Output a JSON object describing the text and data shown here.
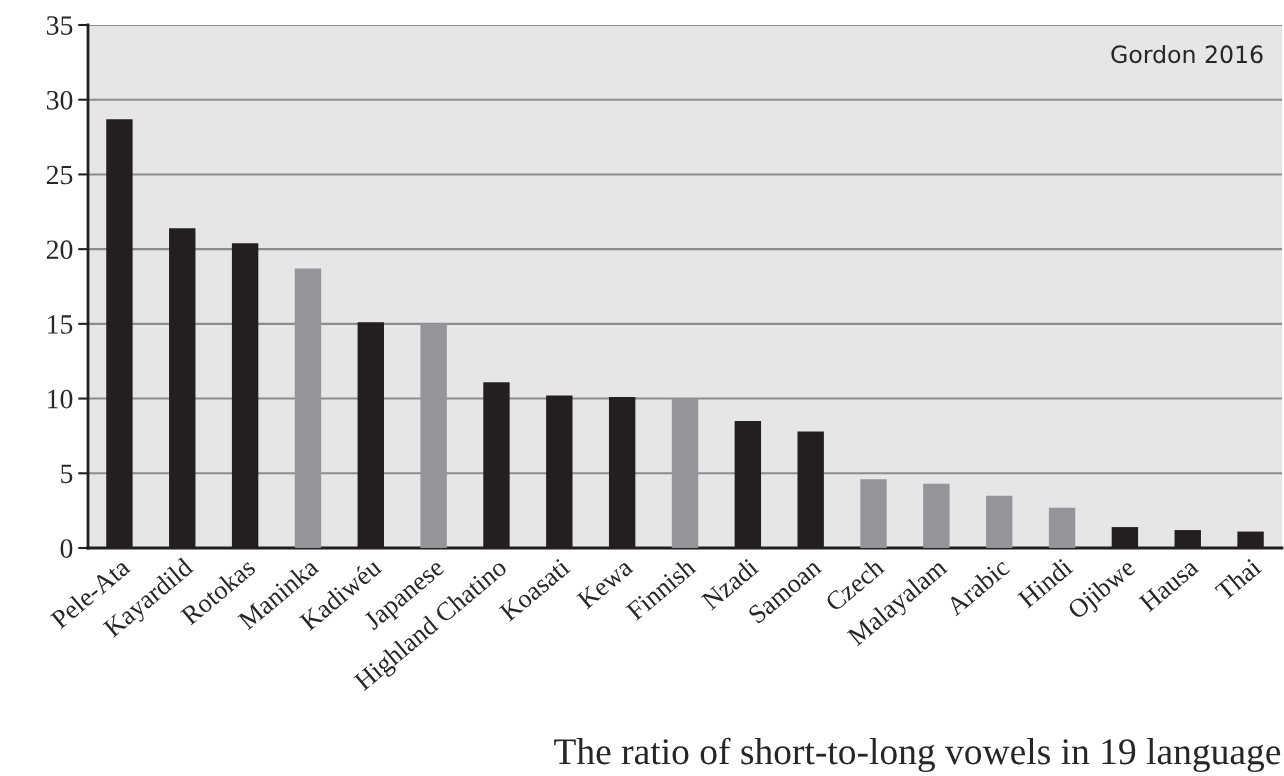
{
  "chart_data": {
    "type": "bar",
    "categories": [
      "Pele-Ata",
      "Kayardild",
      "Rotokas",
      "Maninka",
      "Kadiwéu",
      "Japanese",
      "Highland Chatino",
      "Koasati",
      "Kewa",
      "Finnish",
      "Nzadi",
      "Samoan",
      "Czech",
      "Malayalam",
      "Arabic",
      "Hindi",
      "Ojibwe",
      "Hausa",
      "Thai"
    ],
    "values": [
      28.7,
      21.4,
      20.4,
      18.7,
      15.1,
      15.0,
      11.1,
      10.2,
      10.1,
      10.0,
      8.5,
      7.8,
      4.6,
      4.3,
      3.5,
      2.7,
      1.4,
      1.2,
      1.1
    ],
    "colors": [
      "#231f20",
      "#231f20",
      "#231f20",
      "#939598",
      "#231f20",
      "#939598",
      "#231f20",
      "#231f20",
      "#231f20",
      "#939598",
      "#231f20",
      "#231f20",
      "#939598",
      "#939598",
      "#939598",
      "#939598",
      "#231f20",
      "#231f20",
      "#231f20"
    ],
    "ylim": [
      0,
      35
    ],
    "yticks": [
      0,
      5,
      10,
      15,
      20,
      25,
      30,
      35
    ],
    "grid": "y",
    "annotations": [
      "Gordon 2016",
      "The ratio of short-to-long vowels in 19 language"
    ]
  }
}
